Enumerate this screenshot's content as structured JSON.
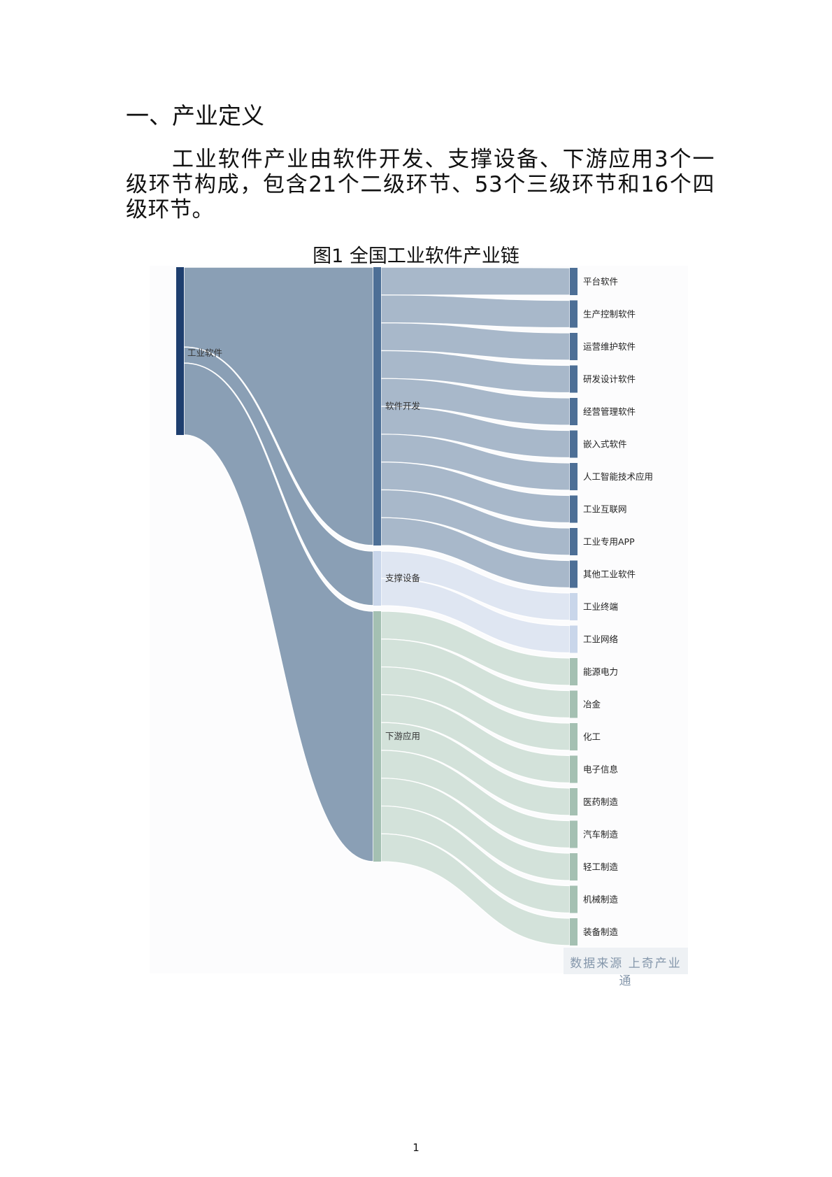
{
  "document": {
    "heading": "一、产业定义",
    "paragraph": "工业软件产业由软件开发、支撑设备、下游应用3个一级环节构成，包含21个二级环节、53个三级环节和16个四级环节。",
    "figure_title": "图1 全国工业软件产业链",
    "source": "数据来源 上奇产业通",
    "page_number": "1"
  },
  "chart_data": {
    "type": "sankey",
    "nodes": {
      "root": {
        "label": "工业软件",
        "color": "#1e3e6e"
      },
      "groups": [
        {
          "key": "dev",
          "label": "软件开发",
          "color": "#4d6f96",
          "link_color": "#a8b8ca"
        },
        {
          "key": "equip",
          "label": "支撑设备",
          "color": "#c9d6ea",
          "link_color": "#dfe6f2"
        },
        {
          "key": "app",
          "label": "下游应用",
          "color": "#a4c0b2",
          "link_color": "#d3e2da"
        }
      ],
      "leaves": [
        {
          "label": "平台软件",
          "group": "dev"
        },
        {
          "label": "生产控制软件",
          "group": "dev"
        },
        {
          "label": "运营维护软件",
          "group": "dev"
        },
        {
          "label": "研发设计软件",
          "group": "dev"
        },
        {
          "label": "经营管理软件",
          "group": "dev"
        },
        {
          "label": "嵌入式软件",
          "group": "dev"
        },
        {
          "label": "人工智能技术应用",
          "group": "dev"
        },
        {
          "label": "工业互联网",
          "group": "dev"
        },
        {
          "label": "工业专用APP",
          "group": "dev"
        },
        {
          "label": "其他工业软件",
          "group": "dev"
        },
        {
          "label": "工业终端",
          "group": "equip"
        },
        {
          "label": "工业网络",
          "group": "equip"
        },
        {
          "label": "能源电力",
          "group": "app"
        },
        {
          "label": "冶金",
          "group": "app"
        },
        {
          "label": "化工",
          "group": "app"
        },
        {
          "label": "电子信息",
          "group": "app"
        },
        {
          "label": "医药制造",
          "group": "app"
        },
        {
          "label": "汽车制造",
          "group": "app"
        },
        {
          "label": "轻工制造",
          "group": "app"
        },
        {
          "label": "机械制造",
          "group": "app"
        },
        {
          "label": "装备制造",
          "group": "app"
        }
      ]
    },
    "root_link_color": "#8a9fb5"
  }
}
